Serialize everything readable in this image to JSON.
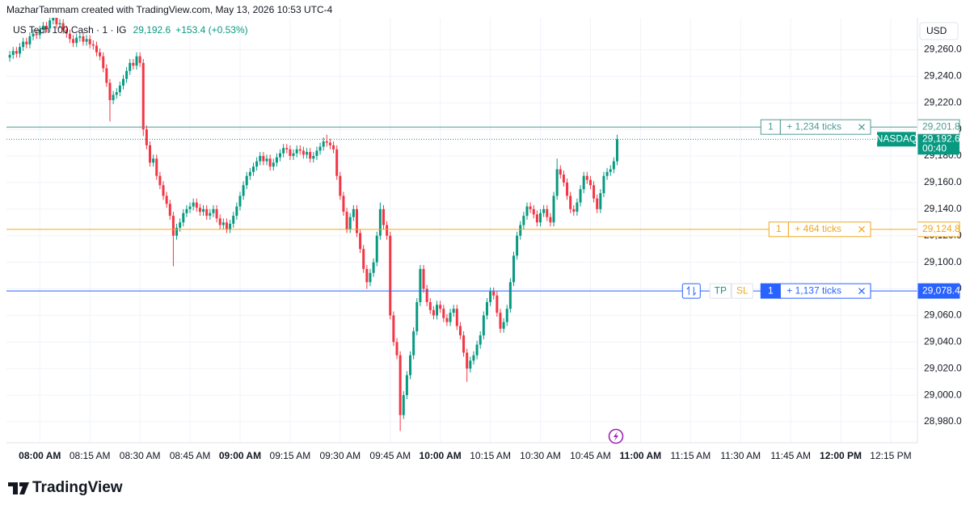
{
  "chart_data": {
    "type": "candlestick",
    "title": "MazharTammam created with TradingView.com, May 13, 2026 10:53 UTC-4",
    "symbol": "US Tech 100 Cash · 1 · IG",
    "last": {
      "value": 29192.6,
      "label": "29,192.6"
    },
    "change": "+153.4 (+0.53%)",
    "currency": "USD",
    "brand": "TradingView",
    "up_color": "#089981",
    "down_color": "#f23645",
    "grid": true,
    "xlim": [
      "07:50",
      "12:23"
    ],
    "ylim": [
      28966,
      29284
    ],
    "yticks": [
      {
        "value": 28980,
        "label": "28,980.0"
      },
      {
        "value": 29000,
        "label": "29,000.0"
      },
      {
        "value": 29020,
        "label": "29,020.0"
      },
      {
        "value": 29040,
        "label": "29,040.0"
      },
      {
        "value": 29060,
        "label": "29,060.0"
      },
      {
        "value": 29080,
        "label": "29,080.0"
      },
      {
        "value": 29100,
        "label": "29,100.0"
      },
      {
        "value": 29120,
        "label": "29,120.0"
      },
      {
        "value": 29140,
        "label": "29,140.0"
      },
      {
        "value": 29160,
        "label": "29,160.0"
      },
      {
        "value": 29180,
        "label": "29,180.0"
      },
      {
        "value": 29200,
        "label": "29,200.0"
      },
      {
        "value": 29220,
        "label": "29,220.0"
      },
      {
        "value": 29240,
        "label": "29,240.0"
      },
      {
        "value": 29260,
        "label": "29,260.0"
      }
    ],
    "xticks": [
      {
        "value": "08:00",
        "label": "08:00 AM"
      },
      {
        "value": "08:15",
        "label": "08:15 AM"
      },
      {
        "value": "08:30",
        "label": "08:30 AM"
      },
      {
        "value": "08:45",
        "label": "08:45 AM"
      },
      {
        "value": "09:00",
        "label": "09:00 AM"
      },
      {
        "value": "09:15",
        "label": "09:15 AM"
      },
      {
        "value": "09:30",
        "label": "09:30 AM"
      },
      {
        "value": "09:45",
        "label": "09:45 AM"
      },
      {
        "value": "10:00",
        "label": "10:00 AM"
      },
      {
        "value": "10:15",
        "label": "10:15 AM"
      },
      {
        "value": "10:30",
        "label": "10:30 AM"
      },
      {
        "value": "10:45",
        "label": "10:45 AM"
      },
      {
        "value": "11:00",
        "label": "11:00 AM"
      },
      {
        "value": "11:15",
        "label": "11:15 AM"
      },
      {
        "value": "11:30",
        "label": "11:30 AM"
      },
      {
        "value": "11:45",
        "label": "11:45 AM"
      },
      {
        "value": "12:00",
        "label": "12:00 PM"
      },
      {
        "value": "12:15",
        "label": "12:15 PM"
      }
    ],
    "current": {
      "value": 29192.6,
      "label": "29,192.6",
      "exchange": "NASDAQ",
      "countdown": "00:40",
      "color": "#089981"
    },
    "price_lines": [
      {
        "value": 29201.8,
        "label": "29,201.8",
        "quantity": "1",
        "text": "+ 1,234 ticks",
        "color": "#4f9a94",
        "filled": false
      },
      {
        "value": 29124.8,
        "label": "29,124.8",
        "quantity": "1",
        "text": "+ 464 ticks",
        "color": "#f0a61c",
        "filled": false
      },
      {
        "value": 29078.4,
        "label": "29,078.4",
        "quantity": "1",
        "text": "+ 1,137 ticks",
        "color": "#2962ff",
        "filled": true,
        "buttons": [
          "TP",
          "SL"
        ]
      }
    ],
    "x": [
      "07:51",
      "07:52",
      "07:53",
      "07:54",
      "07:55",
      "07:56",
      "07:57",
      "07:58",
      "07:59",
      "08:00",
      "08:01",
      "08:02",
      "08:03",
      "08:04",
      "08:05",
      "08:06",
      "08:07",
      "08:08",
      "08:09",
      "08:10",
      "08:11",
      "08:12",
      "08:13",
      "08:14",
      "08:15",
      "08:16",
      "08:17",
      "08:18",
      "08:19",
      "08:20",
      "08:21",
      "08:22",
      "08:23",
      "08:24",
      "08:25",
      "08:26",
      "08:27",
      "08:28",
      "08:29",
      "08:30",
      "08:31",
      "08:32",
      "08:33",
      "08:34",
      "08:35",
      "08:36",
      "08:37",
      "08:38",
      "08:39",
      "08:40",
      "08:41",
      "08:42",
      "08:43",
      "08:44",
      "08:45",
      "08:46",
      "08:47",
      "08:48",
      "08:49",
      "08:50",
      "08:51",
      "08:52",
      "08:53",
      "08:54",
      "08:55",
      "08:56",
      "08:57",
      "08:58",
      "08:59",
      "09:00",
      "09:01",
      "09:02",
      "09:03",
      "09:04",
      "09:05",
      "09:06",
      "09:07",
      "09:08",
      "09:09",
      "09:10",
      "09:11",
      "09:12",
      "09:13",
      "09:14",
      "09:15",
      "09:16",
      "09:17",
      "09:18",
      "09:19",
      "09:20",
      "09:21",
      "09:22",
      "09:23",
      "09:24",
      "09:25",
      "09:26",
      "09:27",
      "09:28",
      "09:29",
      "09:30",
      "09:31",
      "09:32",
      "09:33",
      "09:34",
      "09:35",
      "09:36",
      "09:37",
      "09:38",
      "09:39",
      "09:40",
      "09:41",
      "09:42",
      "09:43",
      "09:44",
      "09:45",
      "09:46",
      "09:47",
      "09:48",
      "09:49",
      "09:50",
      "09:51",
      "09:52",
      "09:53",
      "09:54",
      "09:55",
      "09:56",
      "09:57",
      "09:58",
      "09:59",
      "10:00",
      "10:01",
      "10:02",
      "10:03",
      "10:04",
      "10:05",
      "10:06",
      "10:07",
      "10:08",
      "10:09",
      "10:10",
      "10:11",
      "10:12",
      "10:13",
      "10:14",
      "10:15",
      "10:16",
      "10:17",
      "10:18",
      "10:19",
      "10:20",
      "10:21",
      "10:22",
      "10:23",
      "10:24",
      "10:25",
      "10:26",
      "10:27",
      "10:28",
      "10:29",
      "10:30",
      "10:31",
      "10:32",
      "10:33",
      "10:34",
      "10:35",
      "10:36",
      "10:37",
      "10:38",
      "10:39",
      "10:40",
      "10:41",
      "10:42",
      "10:43",
      "10:44",
      "10:45",
      "10:46",
      "10:47",
      "10:48",
      "10:49",
      "10:50",
      "10:51",
      "10:52",
      "10:53"
    ],
    "open": [
      29254,
      29256,
      29259,
      29257,
      29262,
      29266,
      29264,
      29270,
      29272,
      29271,
      29275,
      29278,
      29276,
      29282,
      29284,
      29279,
      29280,
      29275,
      29272,
      29268,
      29265,
      29269,
      29270,
      29266,
      29268,
      29264,
      29263,
      29258,
      29255,
      29246,
      29235,
      29222,
      29226,
      29228,
      29233,
      29238,
      29244,
      29250,
      29248,
      29255,
      29250,
      29200,
      29188,
      29175,
      29178,
      29165,
      29158,
      29150,
      29144,
      29135,
      29120,
      29126,
      29130,
      29137,
      29140,
      29142,
      29145,
      29141,
      29138,
      29140,
      29135,
      29137,
      29140,
      29133,
      29128,
      29130,
      29125,
      29129,
      29135,
      29142,
      29150,
      29158,
      29165,
      29168,
      29172,
      29176,
      29180,
      29176,
      29178,
      29172,
      29175,
      29179,
      29182,
      29186,
      29185,
      29180,
      29182,
      29185,
      29184,
      29181,
      29183,
      29178,
      29180,
      29184,
      29187,
      29191,
      29190,
      29188,
      29185,
      29165,
      29150,
      29138,
      29125,
      29134,
      29140,
      29122,
      29110,
      29095,
      29085,
      29092,
      29100,
      29120,
      29140,
      29128,
      29120,
      29060,
      29040,
      29030,
      28985,
      29000,
      29015,
      29030,
      29048,
      29070,
      29095,
      29080,
      29070,
      29064,
      29060,
      29068,
      29065,
      29058,
      29055,
      29062,
      29065,
      29052,
      29045,
      29032,
      29020,
      29026,
      29030,
      29038,
      29045,
      29060,
      29070,
      29078,
      29075,
      29062,
      29050,
      29055,
      29065,
      29085,
      29105,
      29120,
      29128,
      29135,
      29142,
      29140,
      29136,
      29130,
      29137,
      29140,
      29134,
      29130,
      29150,
      29170,
      29166,
      29160,
      29150,
      29140,
      29138,
      29145,
      29155,
      29165,
      29162,
      29158,
      29148,
      29140,
      29152,
      29165,
      29168,
      29170,
      29176
    ],
    "high": [
      29259,
      29262,
      29262,
      29265,
      29269,
      29269,
      29273,
      29275,
      29275,
      29278,
      29281,
      29281,
      29285,
      29287,
      29287,
      29283,
      29283,
      29278,
      29275,
      29271,
      29272,
      29273,
      29273,
      29271,
      29271,
      29267,
      29266,
      29261,
      29258,
      29249,
      29238,
      29229,
      29231,
      29236,
      29241,
      29247,
      29253,
      29253,
      29258,
      29258,
      29253,
      29203,
      29191,
      29181,
      29181,
      29168,
      29161,
      29153,
      29147,
      29138,
      29129,
      29133,
      29140,
      29143,
      29145,
      29148,
      29148,
      29144,
      29143,
      29143,
      29140,
      29143,
      29143,
      29136,
      29133,
      29133,
      29132,
      29138,
      29145,
      29153,
      29161,
      29168,
      29171,
      29175,
      29179,
      29183,
      29183,
      29181,
      29181,
      29178,
      29182,
      29185,
      29189,
      29189,
      29188,
      29185,
      29188,
      29188,
      29187,
      29186,
      29186,
      29183,
      29187,
      29190,
      29194,
      29196,
      29193,
      29191,
      29188,
      29168,
      29153,
      29141,
      29137,
      29143,
      29143,
      29125,
      29113,
      29098,
      29095,
      29103,
      29123,
      29145,
      29143,
      29131,
      29123,
      29063,
      29043,
      29033,
      29003,
      29018,
      29033,
      29051,
      29073,
      29098,
      29098,
      29083,
      29073,
      29067,
      29071,
      29071,
      29068,
      29061,
      29065,
      29068,
      29068,
      29055,
      29048,
      29035,
      29029,
      29033,
      29041,
      29048,
      29063,
      29073,
      29081,
      29081,
      29078,
      29065,
      29058,
      29068,
      29088,
      29108,
      29123,
      29131,
      29138,
      29145,
      29145,
      29143,
      29139,
      29140,
      29143,
      29143,
      29137,
      29153,
      29178,
      29173,
      29169,
      29163,
      29153,
      29143,
      29148,
      29158,
      29168,
      29168,
      29165,
      29161,
      29151,
      29155,
      29168,
      29171,
      29173,
      29179,
      29196
    ],
    "low": [
      29251,
      29253,
      29254,
      29254,
      29259,
      29261,
      29261,
      29267,
      29268,
      29268,
      29272,
      29273,
      29273,
      29279,
      29276,
      29276,
      29272,
      29269,
      29265,
      29262,
      29262,
      29266,
      29263,
      29263,
      29261,
      29260,
      29255,
      29252,
      29243,
      29232,
      29206,
      29219,
      29223,
      29225,
      29230,
      29235,
      29241,
      29245,
      29245,
      29247,
      29195,
      29185,
      29172,
      29172,
      29162,
      29155,
      29147,
      29141,
      29132,
      29097,
      29117,
      29123,
      29127,
      29134,
      29137,
      29139,
      29138,
      29135,
      29135,
      29132,
      29132,
      29134,
      29130,
      29125,
      29125,
      29122,
      29122,
      29126,
      29132,
      29139,
      29147,
      29155,
      29162,
      29165,
      29169,
      29173,
      29173,
      29173,
      29169,
      29169,
      29172,
      29176,
      29179,
      29182,
      29177,
      29177,
      29179,
      29181,
      29178,
      29178,
      29175,
      29175,
      29177,
      29181,
      29184,
      29187,
      29185,
      29182,
      29162,
      29147,
      29135,
      29122,
      29122,
      29131,
      29119,
      29107,
      29092,
      29080,
      29082,
      29089,
      29097,
      29117,
      29125,
      29117,
      29057,
      29037,
      29027,
      28973,
      28982,
      28997,
      29012,
      29027,
      29045,
      29067,
      29077,
      29067,
      29061,
      29057,
      29057,
      29062,
      29055,
      29052,
      29052,
      29059,
      29049,
      29042,
      29029,
      29010,
      29017,
      29023,
      29027,
      29035,
      29042,
      29057,
      29067,
      29072,
      29059,
      29047,
      29047,
      29052,
      29062,
      29082,
      29102,
      29117,
      29125,
      29132,
      29137,
      29133,
      29127,
      29127,
      29134,
      29131,
      29127,
      29127,
      29147,
      29163,
      29157,
      29147,
      29137,
      29135,
      29135,
      29142,
      29152,
      29159,
      29155,
      29145,
      29137,
      29137,
      29149,
      29162,
      29165,
      29167,
      29173
    ],
    "close": [
      29256,
      29259,
      29257,
      29262,
      29266,
      29264,
      29270,
      29272,
      29271,
      29275,
      29278,
      29276,
      29282,
      29284,
      29279,
      29280,
      29275,
      29272,
      29268,
      29265,
      29269,
      29270,
      29266,
      29268,
      29264,
      29263,
      29258,
      29255,
      29246,
      29235,
      29222,
      29226,
      29228,
      29233,
      29238,
      29244,
      29250,
      29248,
      29255,
      29250,
      29200,
      29188,
      29175,
      29178,
      29165,
      29158,
      29150,
      29144,
      29135,
      29120,
      29126,
      29130,
      29137,
      29140,
      29142,
      29145,
      29141,
      29138,
      29140,
      29135,
      29137,
      29140,
      29133,
      29128,
      29130,
      29125,
      29129,
      29135,
      29142,
      29150,
      29158,
      29165,
      29168,
      29172,
      29176,
      29180,
      29176,
      29178,
      29172,
      29175,
      29179,
      29182,
      29186,
      29185,
      29180,
      29182,
      29185,
      29184,
      29181,
      29183,
      29178,
      29180,
      29184,
      29187,
      29191,
      29190,
      29188,
      29185,
      29165,
      29150,
      29138,
      29125,
      29134,
      29140,
      29122,
      29110,
      29095,
      29085,
      29092,
      29100,
      29120,
      29140,
      29128,
      29120,
      29060,
      29040,
      29030,
      28985,
      29000,
      29015,
      29030,
      29048,
      29070,
      29095,
      29080,
      29070,
      29064,
      29060,
      29068,
      29065,
      29058,
      29055,
      29062,
      29065,
      29052,
      29045,
      29032,
      29020,
      29026,
      29030,
      29038,
      29045,
      29060,
      29070,
      29078,
      29075,
      29062,
      29050,
      29055,
      29065,
      29085,
      29105,
      29120,
      29128,
      29135,
      29142,
      29140,
      29136,
      29130,
      29137,
      29140,
      29134,
      29130,
      29150,
      29170,
      29166,
      29160,
      29150,
      29140,
      29138,
      29145,
      29155,
      29165,
      29162,
      29158,
      29148,
      29140,
      29152,
      29165,
      29168,
      29170,
      29176,
      29192.6
    ]
  }
}
